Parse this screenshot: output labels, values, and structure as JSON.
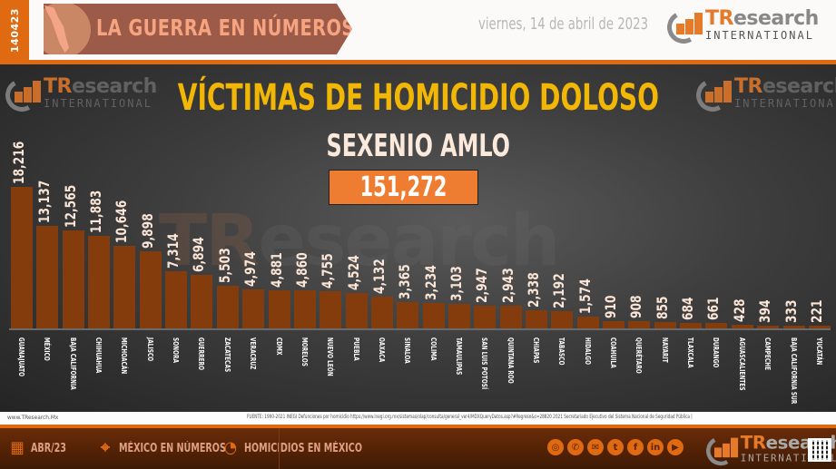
{
  "header": {
    "date_code": "140423",
    "banner_title": "LA GUERRA EN NÚMEROS",
    "date_text": "viernes, 14 de abril de 2023",
    "logo": {
      "brand_t": "TR",
      "brand_rest": "esearch",
      "subtitle": "INTERNATIONAL"
    }
  },
  "chart": {
    "title": "VÍCTIMAS DE HOMICIDIO DOLOSO",
    "subtitle": "SEXENIO AMLO",
    "total": "151,272",
    "watermark_a": "TR",
    "watermark_b": "esearch"
  },
  "chart_data": {
    "type": "bar",
    "title": "VÍCTIMAS DE HOMICIDIO DOLOSO",
    "subtitle": "SEXENIO AMLO",
    "total": 151272,
    "xlabel": "",
    "ylabel": "",
    "grid": false,
    "legend": "none",
    "bar_color": "#843c0c",
    "categories": [
      "GUANAJUATO",
      "MÉXICO",
      "BAJA CALIFORNIA",
      "CHIHUAHUA",
      "MICHOACÁN",
      "JALISCO",
      "SONORA",
      "GUERRERO",
      "ZACATECAS",
      "VERACRUZ",
      "CDMX",
      "MORELOS",
      "NUEVO LEÓN",
      "PUEBLA",
      "OAXACA",
      "SINALOA",
      "COLIMA",
      "TAMAULIPAS",
      "SAN LUIS POTOSÍ",
      "QUINTANA ROO",
      "CHIAPAS",
      "TABASCO",
      "HIDALGO",
      "COAHUILA",
      "QUERÉTARO",
      "NAYARIT",
      "TLAXCALA",
      "DURANGO",
      "AGUASCALIENTES",
      "CAMPECHE",
      "BAJA CALIFORNIA SUR",
      "YUCATÁN"
    ],
    "values": [
      18216,
      13137,
      12565,
      11883,
      10646,
      9898,
      7314,
      6894,
      5503,
      4974,
      4881,
      4860,
      4755,
      4524,
      4132,
      3365,
      3234,
      3103,
      2947,
      2943,
      2338,
      2192,
      1574,
      910,
      908,
      855,
      684,
      661,
      428,
      394,
      333,
      221
    ],
    "labels": [
      "18,216",
      "13,137",
      "12,565",
      "11,883",
      "10,646",
      "9,898",
      "7,314",
      "6,894",
      "5,503",
      "4,974",
      "4,881",
      "4,860",
      "4,755",
      "4,524",
      "4,132",
      "3,365",
      "3,234",
      "3,103",
      "2,947",
      "2,943",
      "2,338",
      "2,192",
      "1,574",
      "910",
      "908",
      "855",
      "684",
      "661",
      "428",
      "394",
      "333",
      "221"
    ]
  },
  "source": {
    "site": "www.TResearch.Mx",
    "fuente": "FUENTE: 1990-2021 INEGI Defunciones por homicidio https://www.inegi.org.mx/sistemas/olap/consulta/general_ver4/MDXQueryDatos.asp?#Regreso&c=28820 2021 Secretariado Ejecutivo del Sistema Nacional de Seguridad Pública |"
  },
  "footer": {
    "items": [
      {
        "icon": "calendar-icon",
        "label": "ABR/23"
      },
      {
        "icon": "map-pin-icon",
        "label": "MÉXICO EN NÚMEROS"
      },
      {
        "icon": "chat-chart-icon",
        "label": "HOMICIDIOS EN MÉXICO"
      }
    ],
    "social": [
      {
        "icon": "globe-icon",
        "glyph": "◎"
      },
      {
        "icon": "whatsapp-icon",
        "glyph": "✆"
      },
      {
        "icon": "mail-icon",
        "glyph": "✉"
      },
      {
        "icon": "twitter-icon",
        "glyph": "t"
      },
      {
        "icon": "facebook-icon",
        "glyph": "f"
      },
      {
        "icon": "linkedin-icon",
        "glyph": "in"
      },
      {
        "icon": "youtube-icon",
        "glyph": "▶"
      }
    ],
    "icons": {
      "calendar": "📅",
      "map": "⌖",
      "chat": "◔"
    }
  }
}
